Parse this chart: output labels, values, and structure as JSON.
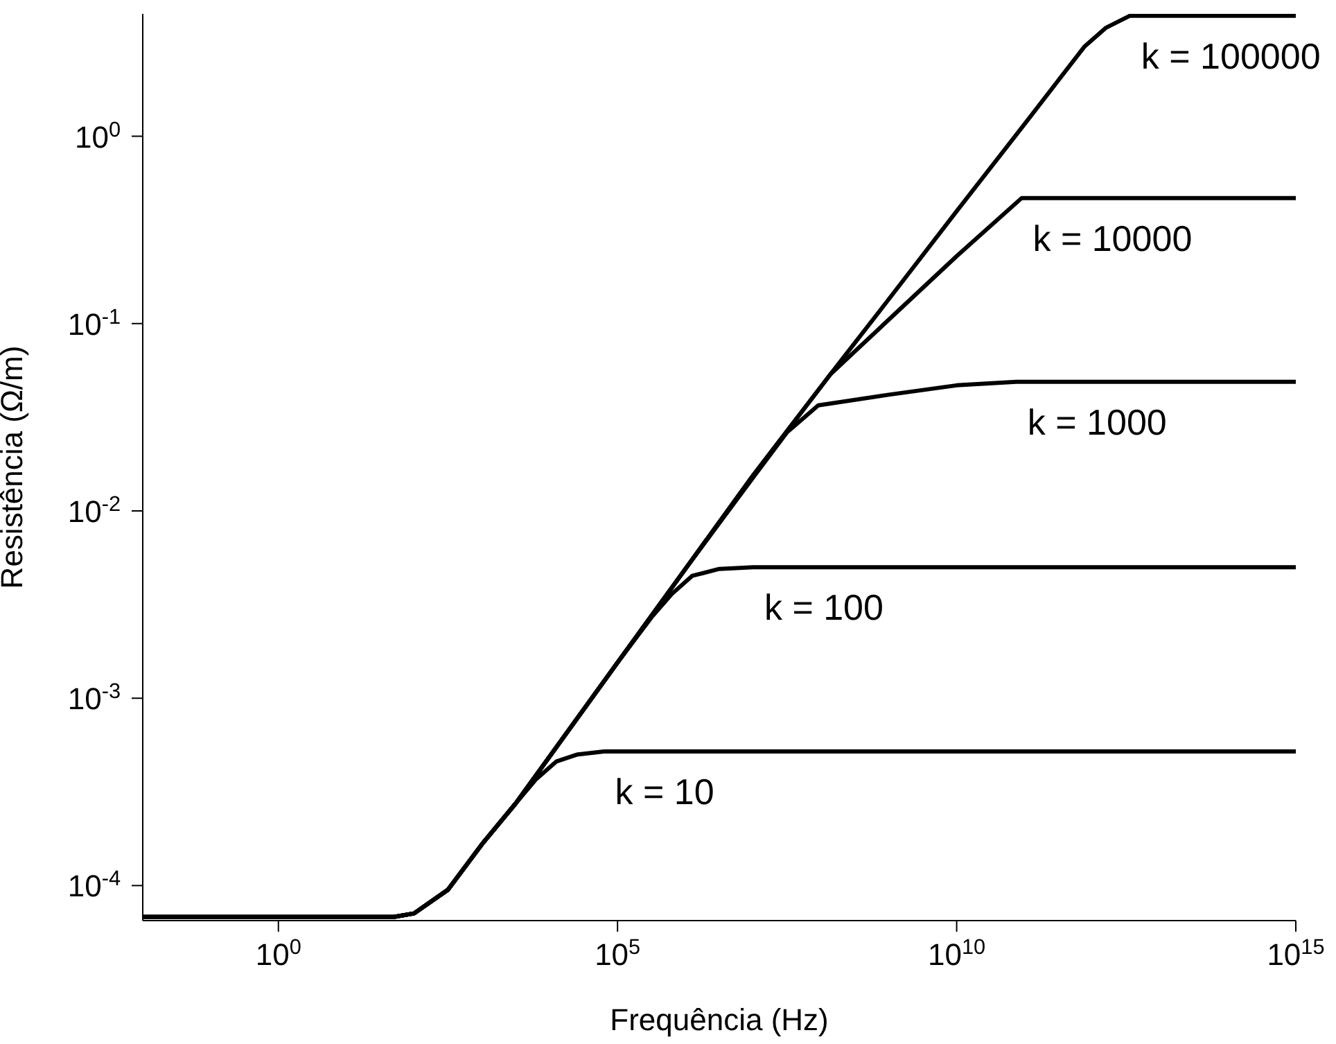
{
  "chart_data": {
    "type": "line",
    "xlabel": "Frequência (Hz)",
    "ylabel": "Resistência (Ω/m)",
    "log": "xy",
    "marker": "none",
    "line_style": "solid",
    "xlim": [
      0.01,
      1000000000000000.0
    ],
    "ylim": [
      6.5e-05,
      4.5
    ],
    "xticks": [
      {
        "value": 1,
        "label": "10$^{0}$"
      },
      {
        "value": 100000.0,
        "label": "10$^{5}$"
      },
      {
        "value": 10000000000.0,
        "label": "10$^{10}$"
      },
      {
        "value": 1000000000000000.0,
        "label": "10$^{15}$"
      }
    ],
    "yticks": [
      {
        "value": 0.0001,
        "label": "10$^{-4}$"
      },
      {
        "value": 0.001,
        "label": "10$^{-3}$"
      },
      {
        "value": 0.01,
        "label": "10$^{-2}$"
      },
      {
        "value": 0.1,
        "label": "10$^{-1}$"
      },
      {
        "value": 1,
        "label": "10$^{0}$"
      }
    ],
    "series": [
      {
        "name": "k = 10",
        "color": "#000000",
        "x": [
          0.01,
          50,
          100,
          316,
          1000,
          3162,
          6310,
          12600,
          25100,
          63100,
          1000000000000000.0
        ],
        "values": [
          6.8e-05,
          6.8e-05,
          7.1e-05,
          9.5e-05,
          0.000166,
          0.000275,
          0.00037,
          0.00046,
          0.0005,
          0.00052,
          0.00052
        ]
      },
      {
        "name": "k = 100",
        "color": "#000000",
        "x": [
          0.01,
          50,
          100,
          316,
          1000,
          3162,
          100000.0,
          316000,
          631000,
          1260000.0,
          3160000.0,
          10000000.0,
          1000000000000000.0
        ],
        "values": [
          6.8e-05,
          6.8e-05,
          7.1e-05,
          9.5e-05,
          0.000166,
          0.000275,
          0.00155,
          0.0027,
          0.0036,
          0.0045,
          0.0049,
          0.005,
          0.005
        ]
      },
      {
        "name": "k = 1000",
        "color": "#000000",
        "x": [
          0.01,
          50,
          100,
          316,
          1000,
          3162,
          100000.0,
          1000000.0,
          10000000.0,
          31600000.0,
          91000000.0,
          1000000000.0,
          10000000000.0,
          76000000000.0,
          1000000000000000.0
        ],
        "values": [
          6.8e-05,
          6.8e-05,
          7.1e-05,
          9.5e-05,
          0.000166,
          0.000275,
          0.00155,
          0.0049,
          0.0151,
          0.0263,
          0.0366,
          0.0417,
          0.0468,
          0.0489,
          0.0489
        ]
      },
      {
        "name": "k = 10000",
        "color": "#000000",
        "x": [
          0.01,
          50,
          100,
          316,
          1000,
          3162,
          100000.0,
          1000000.0,
          10000000.0,
          138000000.0,
          1000000000.0,
          10000000000.0,
          91000000000.0,
          1000000000000000.0
        ],
        "values": [
          6.8e-05,
          6.8e-05,
          7.1e-05,
          9.5e-05,
          0.000166,
          0.000275,
          0.00155,
          0.0049,
          0.0155,
          0.0537,
          0.105,
          0.229,
          0.468,
          0.468
        ]
      },
      {
        "name": "k = 100000",
        "color": "#000000",
        "x": [
          0.01,
          50,
          100,
          316,
          1000,
          3162,
          100000.0,
          1000000.0,
          10000000.0,
          138000000.0,
          1000000000.0,
          10000000000.0,
          100000000000.0,
          760000000000.0,
          1600000000000.0,
          3600000000000.0,
          1000000000000000.0
        ],
        "values": [
          6.8e-05,
          6.8e-05,
          7.1e-05,
          9.5e-05,
          0.000166,
          0.000275,
          0.00155,
          0.0049,
          0.0155,
          0.0537,
          0.135,
          0.398,
          1.16,
          3.0,
          3.8,
          4.4,
          4.4
        ]
      }
    ]
  }
}
